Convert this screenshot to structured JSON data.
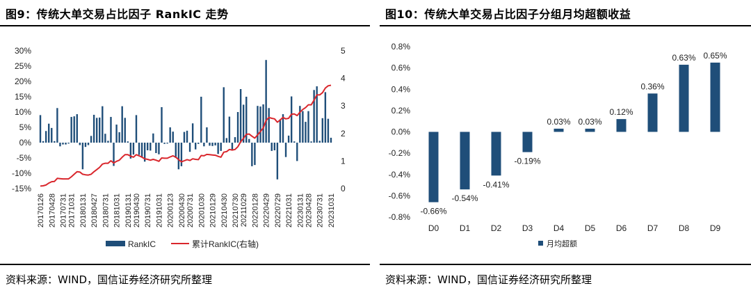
{
  "left": {
    "title": "图9：传统大单交易占比因子 RankIC 走势",
    "source": "资料来源：WIND，国信证券经济研究所整理",
    "chart_data": {
      "type": "bar+line",
      "x_tick_labels": [
        "20170126",
        "20170428",
        "20170731",
        "20171031",
        "20180131",
        "20180427",
        "20180731",
        "20181031",
        "20190131",
        "20190430",
        "20190731",
        "20191031",
        "20200123",
        "20200430",
        "20200731",
        "20201030",
        "20210129",
        "20210430",
        "20210730",
        "20211029",
        "20220128",
        "20220429",
        "20220729",
        "20221031",
        "20230131",
        "20230428",
        "20230731",
        "20231031"
      ],
      "y_left_ticks": [
        "30%",
        "25%",
        "20%",
        "15%",
        "10%",
        "5%",
        "0%",
        "-5%",
        "-10%",
        "-15%"
      ],
      "y_left_range": [
        -15,
        30
      ],
      "y_right_ticks": [
        "5",
        "4",
        "3",
        "2",
        "1",
        "0"
      ],
      "y_right_range": [
        0,
        5
      ],
      "series": [
        {
          "name": "RankIC",
          "kind": "bar",
          "axis": "left",
          "color": "#1f4e79",
          "values": [
            9.0,
            0.5,
            3.8,
            6.2,
            4.8,
            0.5,
            11.3,
            -1.2,
            -0.6,
            -0.6,
            -0.3,
            8.4,
            8.6,
            9.3,
            -0.8,
            -8.7,
            -1.4,
            -0.8,
            2.2,
            9.1,
            8.1,
            8.2,
            11.9,
            2.9,
            0.6,
            8.4,
            -7.6,
            5.9,
            3.4,
            11.9,
            8.1,
            0.4,
            -5.2,
            -3.9,
            9.0,
            -4.0,
            -4.7,
            -6.2,
            -2.5,
            -2.6,
            3.0,
            -3.4,
            -3.8,
            11.6,
            -0.4,
            -0.3,
            5.0,
            3.6,
            -5.0,
            -8.7,
            -7.7,
            3.5,
            3.9,
            -3.0,
            6.3,
            -2.2,
            -0.4,
            15.0,
            -1.2,
            5.0,
            -1.0,
            -1.1,
            -0.9,
            -3.7,
            -2.7,
            18.1,
            1.5,
            8.5,
            -2.6,
            1.8,
            10.0,
            17.5,
            12.4,
            15.0,
            1.2,
            -7.7,
            -7.3,
            12.0,
            11.8,
            12.5,
            27.0,
            11.3,
            -2.7,
            -2.5,
            -12.0,
            7.6,
            9.3,
            -4.7,
            2.3,
            15.1,
            0.4,
            -6.0,
            12.0,
            10.3,
            6.8,
            10.3,
            0.4,
            17.2,
            18.4,
            0.6,
            8.0,
            16.5,
            7.8,
            1.6
          ]
        },
        {
          "name": "累计RankIC(右轴)",
          "kind": "line",
          "axis": "right",
          "color": "#d9262c",
          "values": [
            0.09,
            0.1,
            0.13,
            0.2,
            0.25,
            0.26,
            0.37,
            0.36,
            0.35,
            0.35,
            0.35,
            0.43,
            0.52,
            0.61,
            0.6,
            0.52,
            0.5,
            0.49,
            0.52,
            0.61,
            0.69,
            0.77,
            0.89,
            0.92,
            0.92,
            1.01,
            0.93,
            0.99,
            1.03,
            1.14,
            1.23,
            1.23,
            1.18,
            1.14,
            1.23,
            1.19,
            1.14,
            1.08,
            1.06,
            1.03,
            1.06,
            1.03,
            0.99,
            1.11,
            1.1,
            1.1,
            1.15,
            1.19,
            1.14,
            1.05,
            0.97,
            1.01,
            1.05,
            1.02,
            1.08,
            1.06,
            1.05,
            1.2,
            1.19,
            1.24,
            1.23,
            1.22,
            1.21,
            1.17,
            1.14,
            1.32,
            1.34,
            1.42,
            1.4,
            1.42,
            1.52,
            1.7,
            1.82,
            1.97,
            1.98,
            1.9,
            1.83,
            1.95,
            2.07,
            2.2,
            2.47,
            2.58,
            2.55,
            2.53,
            2.41,
            2.49,
            2.58,
            2.53,
            2.55,
            2.7,
            2.71,
            2.65,
            2.77,
            2.87,
            2.94,
            3.04,
            3.04,
            3.21,
            3.4,
            3.4,
            3.48,
            3.65,
            3.73,
            3.75
          ]
        }
      ],
      "legend": {
        "position": "bottom",
        "items": [
          "RankIC",
          "累计RankIC(右轴)"
        ]
      },
      "grid": false
    }
  },
  "right": {
    "title": "图10：传统大单交易占比因子分组月均超额收益",
    "source": "资料来源：WIND，国信证券经济研究所整理",
    "chart_data": {
      "type": "bar",
      "categories": [
        "D0",
        "D1",
        "D2",
        "D3",
        "D4",
        "D5",
        "D6",
        "D7",
        "D8",
        "D9"
      ],
      "values": [
        -0.66,
        -0.54,
        -0.41,
        -0.19,
        0.03,
        0.03,
        0.12,
        0.36,
        0.63,
        0.65
      ],
      "data_labels": [
        "-0.66%",
        "-0.54%",
        "-0.41%",
        "-0.19%",
        "0.03%",
        "0.03%",
        "0.12%",
        "0.36%",
        "0.63%",
        "0.65%"
      ],
      "y_ticks": [
        "0.8%",
        "0.6%",
        "0.4%",
        "0.2%",
        "0.0%",
        "-0.2%",
        "-0.4%",
        "-0.6%",
        "-0.8%"
      ],
      "ylim": [
        -0.8,
        0.8
      ],
      "series": [
        {
          "name": "月均超额",
          "color": "#1f4e79"
        }
      ],
      "legend": {
        "position": "bottom",
        "items": [
          "月均超额"
        ]
      },
      "grid": false
    }
  }
}
